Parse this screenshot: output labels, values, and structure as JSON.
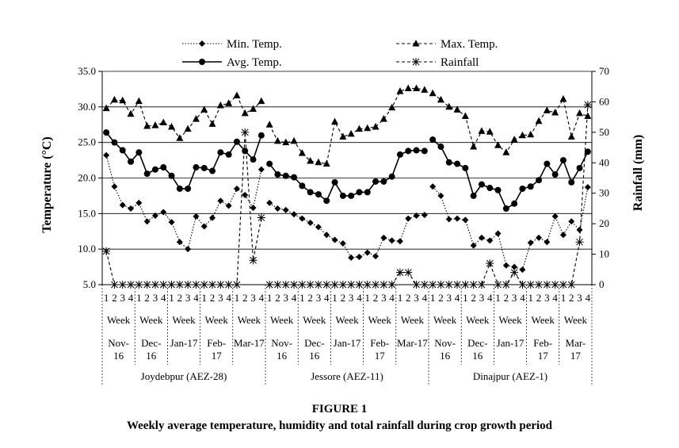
{
  "caption": {
    "figure_label": "FIGURE 1",
    "title": "Weekly average temperature, humidity and total rainfall during crop growth period"
  },
  "chart_data": {
    "type": "line",
    "ylabel": "Temperature (°C)",
    "y2label": "Rainfall (mm)",
    "ylim": [
      5,
      35
    ],
    "y2lim": [
      0,
      70
    ],
    "yticks": [
      "5.0",
      "10.0",
      "15.0",
      "20.0",
      "25.0",
      "30.0",
      "35.0"
    ],
    "y2ticks": [
      "0",
      "10",
      "20",
      "30",
      "40",
      "50",
      "60",
      "70"
    ],
    "grid": true,
    "legend_position": "top",
    "week_label": "Week",
    "week_numbers": [
      "1",
      "2",
      "3",
      "4"
    ],
    "months": [
      "Nov-\n16",
      "Dec-\n16",
      "Jan-17",
      "Feb-\n17",
      "Mar-17"
    ],
    "months_dinajpur": [
      "Nov-\n16",
      "Dec-\n16",
      "Jan-17",
      "Feb-\n17",
      "Mar-\n17"
    ],
    "locations": [
      "Joydebpur (AEZ-28)",
      "Jessore (AEZ-11)",
      "Dinajpur (AEZ-1)"
    ],
    "series": [
      {
        "name": "Min. Temp.",
        "axis": "left",
        "marker": "diamond",
        "style": "dotted",
        "values": [
          [
            23.2,
            18.8,
            16.2,
            15.7,
            16.5,
            13.9,
            14.7,
            15.2,
            13.8,
            11.0,
            10.0,
            14.6,
            13.2,
            14.4,
            16.8,
            16.1,
            18.5,
            17.6,
            15.8,
            21.2
          ],
          [
            16.5,
            15.7,
            15.5,
            14.9,
            14.3,
            13.7,
            13.1,
            12.0,
            11.3,
            10.8,
            8.8,
            8.9,
            9.5,
            9.0,
            11.6,
            11.2,
            11.1,
            14.3,
            14.7,
            14.8
          ],
          [
            18.8,
            17.5,
            14.2,
            14.3,
            14.1,
            10.5,
            11.6,
            11.2,
            12.2,
            7.7,
            7.5,
            7.1,
            10.9,
            11.6,
            11.0,
            14.6,
            12.0,
            13.9,
            12.7,
            18.7
          ]
        ]
      },
      {
        "name": "Max. Temp.",
        "axis": "left",
        "marker": "triangle",
        "style": "dashed",
        "values": [
          [
            29.8,
            31.0,
            30.9,
            29.0,
            30.8,
            27.3,
            27.4,
            27.8,
            27.2,
            25.6,
            26.9,
            28.3,
            29.6,
            27.6,
            30.2,
            30.5,
            31.6,
            29.1,
            29.7,
            30.8
          ],
          [
            27.5,
            25.2,
            25.0,
            25.2,
            23.5,
            22.4,
            22.2,
            22.0,
            27.9,
            25.8,
            26.2,
            26.9,
            27.0,
            27.2,
            28.3,
            29.9,
            32.2,
            32.6,
            32.6,
            32.4
          ],
          [
            31.9,
            31.0,
            30.0,
            29.6,
            28.7,
            24.4,
            26.6,
            26.5,
            24.6,
            23.6,
            25.4,
            26.0,
            26.1,
            28.0,
            29.5,
            29.2,
            31.1,
            25.8,
            29.1,
            28.7
          ]
        ]
      },
      {
        "name": "Avg. Temp.",
        "axis": "left",
        "marker": "circle",
        "style": "solid",
        "values": [
          [
            26.4,
            25.0,
            23.9,
            22.3,
            23.6,
            20.6,
            21.2,
            21.5,
            20.3,
            18.5,
            18.5,
            21.5,
            21.4,
            21.0,
            23.6,
            23.3,
            25.1,
            23.8,
            22.6,
            26.0
          ],
          [
            22.0,
            20.5,
            20.3,
            20.1,
            18.9,
            18.0,
            17.7,
            16.8,
            19.4,
            17.5,
            17.5,
            18.0,
            18.0,
            19.5,
            19.5,
            20.2,
            23.3,
            23.8,
            23.9,
            23.8
          ],
          [
            25.4,
            24.4,
            22.2,
            22.0,
            21.4,
            17.5,
            19.1,
            18.6,
            18.3,
            15.7,
            16.4,
            18.5,
            18.8,
            19.7,
            22.0,
            20.5,
            22.5,
            19.4,
            21.4,
            23.7
          ]
        ]
      },
      {
        "name": "Rainfall",
        "axis": "right",
        "marker": "star",
        "style": "dashed",
        "values": [
          [
            11,
            0,
            0,
            0,
            0,
            0,
            0,
            0,
            0,
            0,
            0,
            0,
            0,
            0,
            0,
            0,
            0,
            50,
            8,
            22
          ],
          [
            0,
            0,
            0,
            0,
            0,
            0,
            0,
            0,
            0,
            0,
            0,
            0,
            0,
            0,
            0,
            0,
            4,
            4,
            0,
            0
          ],
          [
            0,
            0,
            0,
            0,
            0,
            0,
            0,
            7,
            0,
            0,
            4,
            0,
            0,
            0,
            0,
            0,
            0,
            0,
            14,
            59
          ]
        ]
      }
    ]
  }
}
